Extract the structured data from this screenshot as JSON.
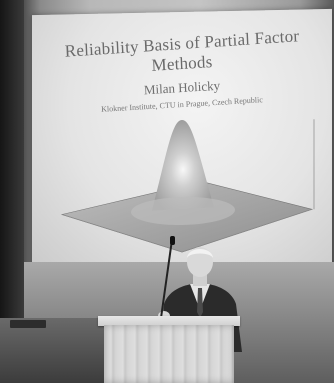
{
  "slide": {
    "title_line1": "Reliability Basis of Partial Factor",
    "title_line2": "Methods",
    "author": "Milan Holicky",
    "institution": "Klokner Institute, CTU in Prague, Czech Republic"
  }
}
